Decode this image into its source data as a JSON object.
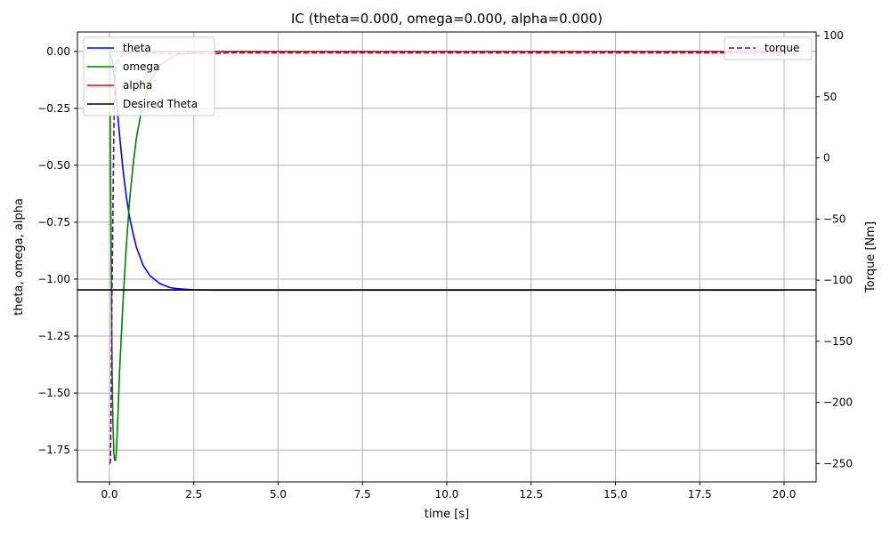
{
  "chart_data": {
    "type": "line",
    "title": "IC (theta=0.000, omega=0.000, alpha=0.000)",
    "xlabel": "time [s]",
    "ylabel_left": "theta, omega, alpha",
    "ylabel_right": "Torque [Nm]",
    "xlim": [
      -0.95,
      20.95
    ],
    "ylim_left": [
      -1.89,
      0.085
    ],
    "ylim_right": [
      -265,
      103
    ],
    "grid": true,
    "x_ticks": [
      0.0,
      2.5,
      5.0,
      7.5,
      10.0,
      12.5,
      15.0,
      17.5,
      20.0
    ],
    "x_tick_labels": [
      "0.0",
      "2.5",
      "5.0",
      "7.5",
      "10.0",
      "12.5",
      "15.0",
      "17.5",
      "20.0"
    ],
    "y_left_ticks": [
      0.0,
      -0.25,
      -0.5,
      -0.75,
      -1.0,
      -1.25,
      -1.5,
      -1.75
    ],
    "y_left_tick_labels": [
      "0.00",
      "−0.25",
      "−0.50",
      "−0.75",
      "−1.00",
      "−1.25",
      "−1.50",
      "−1.75"
    ],
    "y_right_ticks": [
      100,
      50,
      0,
      -50,
      -100,
      -150,
      -200,
      -250
    ],
    "y_right_tick_labels": [
      "100",
      "50",
      "0",
      "−50",
      "−100",
      "−150",
      "−200",
      "−250"
    ],
    "legend_left": {
      "placement": "upper-left",
      "entries": [
        "theta",
        "omega",
        "alpha",
        "Desired Theta"
      ]
    },
    "legend_right": {
      "placement": "upper-right",
      "entries": [
        "torque"
      ]
    },
    "series": [
      {
        "name": "theta",
        "axis": "left",
        "color": "#0000ff",
        "style": "solid",
        "x": [
          0,
          0.1,
          0.2,
          0.3,
          0.4,
          0.5,
          0.6,
          0.7,
          0.8,
          1.0,
          1.2,
          1.5,
          1.8,
          2.0,
          2.5,
          3.0,
          4.0,
          5.0,
          7.5,
          10.0,
          12.5,
          15.0,
          17.5,
          20.0
        ],
        "y": [
          0.0,
          -0.05,
          -0.2,
          -0.37,
          -0.52,
          -0.64,
          -0.73,
          -0.8,
          -0.86,
          -0.94,
          -0.985,
          -1.02,
          -1.037,
          -1.042,
          -1.047,
          -1.048,
          -1.048,
          -1.048,
          -1.048,
          -1.048,
          -1.048,
          -1.048,
          -1.048,
          -1.048
        ]
      },
      {
        "name": "omega",
        "axis": "left",
        "color": "#008000",
        "style": "solid",
        "x": [
          0,
          0.02,
          0.05,
          0.08,
          0.1,
          0.13,
          0.15,
          0.18,
          0.2,
          0.25,
          0.3,
          0.4,
          0.5,
          0.6,
          0.7,
          0.8,
          1.0,
          1.2,
          1.5,
          1.8,
          2.0,
          2.5,
          3.0,
          4.0,
          5.0,
          10.0,
          15.0,
          20.0
        ],
        "y": [
          0.0,
          -0.3,
          -0.9,
          -1.4,
          -1.62,
          -1.76,
          -1.795,
          -1.795,
          -1.77,
          -1.6,
          -1.4,
          -1.1,
          -0.85,
          -0.65,
          -0.5,
          -0.38,
          -0.22,
          -0.13,
          -0.06,
          -0.03,
          -0.015,
          -0.005,
          -0.001,
          0.0,
          0.0,
          0.0,
          0.0,
          0.0
        ]
      },
      {
        "name": "alpha",
        "axis": "left",
        "color": "#ff0000",
        "style": "solid",
        "x": [
          0,
          20.0
        ],
        "y": [
          0.0,
          0.0
        ]
      },
      {
        "name": "Desired Theta",
        "axis": "left",
        "color": "#000000",
        "style": "solid",
        "hline": -1.047
      },
      {
        "name": "torque",
        "axis": "right",
        "color": "#800080",
        "style": "dashed",
        "x": [
          0,
          0.01,
          0.03,
          0.05,
          0.07,
          0.1,
          0.13,
          0.15,
          0.18,
          0.2,
          0.25,
          0.3,
          0.35,
          0.4,
          0.5,
          0.6,
          0.7,
          0.8,
          1.0,
          1.5,
          2.0,
          2.5,
          3.0,
          3.5,
          5.0,
          10.0,
          15.0,
          20.0
        ],
        "y": [
          -250,
          -250,
          -248,
          -200,
          -120,
          -50,
          20,
          60,
          72,
          76,
          80,
          82,
          83,
          84,
          85,
          85.5,
          86,
          86,
          86,
          85.5,
          85.5,
          85.5,
          85,
          86,
          86,
          86,
          86,
          86
        ]
      }
    ]
  }
}
